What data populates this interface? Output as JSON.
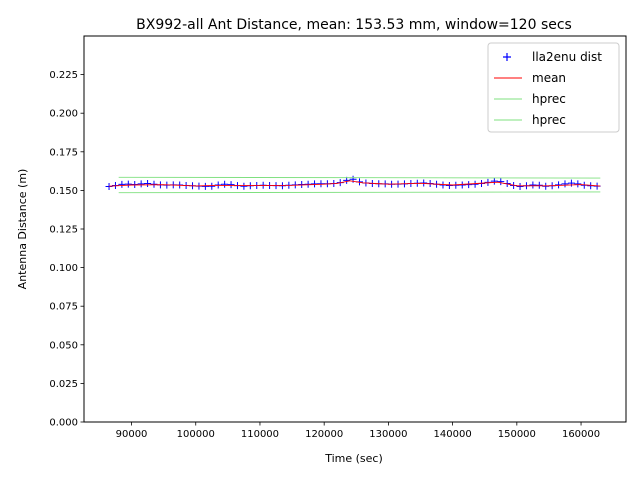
{
  "chart_data": {
    "type": "scatter",
    "title": "BX992-all Ant Distance, mean: 153.53 mm, window=120 secs",
    "xlabel": "Time (sec)",
    "ylabel": "Antenna Distance (m)",
    "xlim": [
      82600,
      167000
    ],
    "ylim": [
      0.0,
      0.25
    ],
    "x_ticks": [
      90000,
      100000,
      110000,
      120000,
      130000,
      140000,
      150000,
      160000
    ],
    "x_tick_labels": [
      "90000",
      "100000",
      "110000",
      "120000",
      "130000",
      "140000",
      "150000",
      "160000"
    ],
    "y_ticks": [
      0.0,
      0.025,
      0.05,
      0.075,
      0.1,
      0.125,
      0.15,
      0.175,
      0.2,
      0.225
    ],
    "y_tick_labels": [
      "0.000",
      "0.025",
      "0.050",
      "0.075",
      "0.100",
      "0.125",
      "0.150",
      "0.175",
      "0.200",
      "0.225"
    ],
    "grid": false,
    "legend_position": "top-right",
    "series": [
      {
        "name": "lla2enu dist",
        "kind": "marker",
        "marker": "+",
        "color": "#0000ff",
        "x": [
          86500,
          87500,
          88500,
          89500,
          90500,
          91500,
          92500,
          93500,
          94500,
          95500,
          96500,
          97500,
          98500,
          99500,
          100500,
          101500,
          102500,
          103500,
          104500,
          105500,
          106500,
          107500,
          108500,
          109500,
          110500,
          111500,
          112500,
          113500,
          114500,
          115500,
          116500,
          117500,
          118500,
          119500,
          120500,
          121500,
          122500,
          123500,
          124500,
          125500,
          126500,
          127500,
          128500,
          129500,
          130500,
          131500,
          132500,
          133500,
          134500,
          135500,
          136500,
          137500,
          138500,
          139500,
          140500,
          141500,
          142500,
          143500,
          144500,
          145500,
          146500,
          147500,
          148500,
          149500,
          150500,
          151500,
          152500,
          153500,
          154500,
          155500,
          156500,
          157500,
          158500,
          159500,
          160500,
          161500,
          162500
        ],
        "y": [
          0.1525,
          0.1532,
          0.1539,
          0.1541,
          0.1538,
          0.1542,
          0.1545,
          0.154,
          0.1536,
          0.1534,
          0.1536,
          0.1535,
          0.1532,
          0.153,
          0.1528,
          0.1526,
          0.1527,
          0.1535,
          0.154,
          0.1537,
          0.1531,
          0.1527,
          0.153,
          0.1532,
          0.1533,
          0.1532,
          0.1531,
          0.153,
          0.1533,
          0.1536,
          0.1538,
          0.154,
          0.1542,
          0.1543,
          0.1543,
          0.1545,
          0.155,
          0.1565,
          0.1572,
          0.1555,
          0.1548,
          0.1545,
          0.1543,
          0.1542,
          0.154,
          0.1541,
          0.1542,
          0.1545,
          0.1546,
          0.1548,
          0.1545,
          0.154,
          0.1535,
          0.1532,
          0.1533,
          0.1535,
          0.1537,
          0.154,
          0.1545,
          0.1552,
          0.156,
          0.1557,
          0.1545,
          0.1532,
          0.1525,
          0.153,
          0.1535,
          0.1533,
          0.1527,
          0.153,
          0.1536,
          0.1542,
          0.1547,
          0.1542,
          0.1533,
          0.153,
          0.1528
        ]
      },
      {
        "name": "mean",
        "kind": "line",
        "color": "#ff0000",
        "x": [
          86500,
          90000,
          95000,
          100000,
          103000,
          105000,
          110000,
          115000,
          120000,
          122000,
          124000,
          126000,
          130000,
          135000,
          140000,
          145000,
          147000,
          150000,
          155000,
          160000,
          163000
        ],
        "y": [
          0.1527,
          0.1535,
          0.1537,
          0.1529,
          0.1532,
          0.1532,
          0.1531,
          0.1533,
          0.154,
          0.1545,
          0.1562,
          0.1549,
          0.154,
          0.1546,
          0.1535,
          0.1548,
          0.1553,
          0.153,
          0.153,
          0.1538,
          0.1528
        ]
      },
      {
        "name": "hprec",
        "kind": "line",
        "color": "#7fe07f",
        "x": [
          88000,
          163000
        ],
        "y": [
          0.1585,
          0.158
        ]
      },
      {
        "name": "hprec",
        "kind": "line",
        "color": "#7fe07f",
        "x": [
          88000,
          163000
        ],
        "y": [
          0.1485,
          0.149
        ]
      }
    ]
  }
}
